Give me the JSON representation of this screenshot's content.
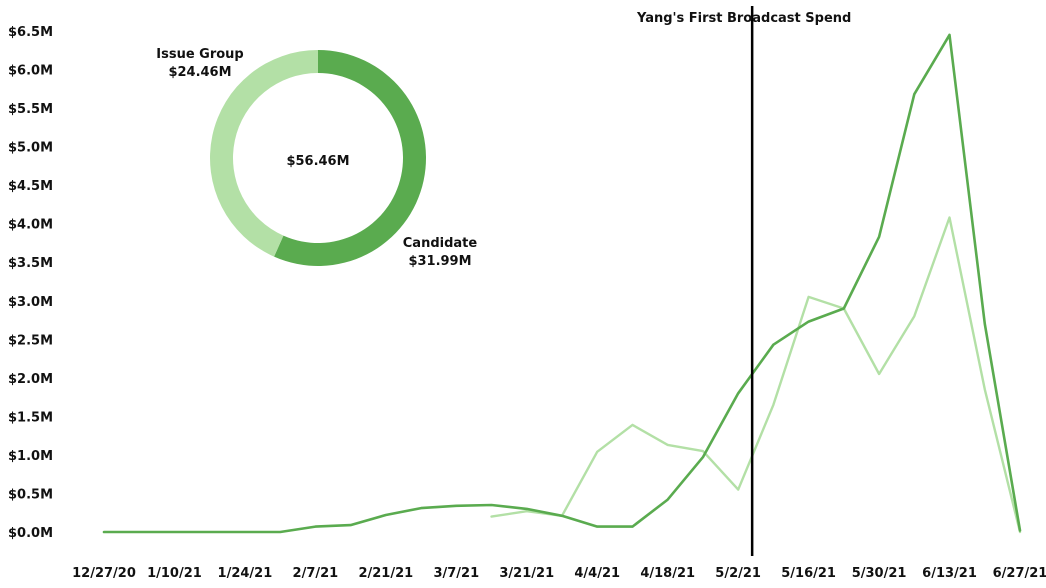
{
  "chart_data": [
    {
      "type": "line",
      "x": [
        "12/27/20",
        "1/3/21",
        "1/10/21",
        "1/17/21",
        "1/24/21",
        "1/31/21",
        "2/7/21",
        "2/14/21",
        "2/21/21",
        "2/28/21",
        "3/7/21",
        "3/14/21",
        "3/21/21",
        "3/28/21",
        "4/4/21",
        "4/11/21",
        "4/18/21",
        "4/25/21",
        "5/2/21",
        "5/9/21",
        "5/16/21",
        "5/23/21",
        "5/30/21",
        "6/6/21",
        "6/13/21",
        "6/20/21",
        "6/27/21"
      ],
      "x_tick_labels": [
        "12/27/20",
        "1/10/21",
        "1/24/21",
        "2/7/21",
        "2/21/21",
        "3/7/21",
        "3/21/21",
        "4/4/21",
        "4/18/21",
        "5/2/21",
        "5/16/21",
        "5/30/21",
        "6/13/21",
        "6/27/21"
      ],
      "y_tick_labels": [
        "$0.0M",
        "$0.5M",
        "$1.0M",
        "$1.5M",
        "$2.0M",
        "$2.5M",
        "$3.0M",
        "$3.5M",
        "$4.0M",
        "$4.5M",
        "$5.0M",
        "$5.5M",
        "$6.0M",
        "$6.5M"
      ],
      "ylim": [
        0,
        6.5
      ],
      "series": [
        {
          "name": "Candidate",
          "color": "#5aab4f",
          "values": [
            0,
            0,
            0,
            0,
            0,
            0,
            0.07,
            0.09,
            0.22,
            0.31,
            0.34,
            0.35,
            0.3,
            0.21,
            0.07,
            0.07,
            0.42,
            0.97,
            1.8,
            2.43,
            2.73,
            2.9,
            3.83,
            5.68,
            6.45,
            2.7,
            0.02
          ]
        },
        {
          "name": "Issue Group",
          "color": "#b3e0a6",
          "values": [
            null,
            null,
            null,
            null,
            null,
            null,
            null,
            null,
            null,
            null,
            null,
            0.2,
            0.27,
            0.21,
            1.04,
            1.39,
            1.13,
            1.05,
            0.55,
            1.65,
            3.05,
            2.9,
            2.05,
            2.8,
            4.08,
            1.85,
            0.0
          ]
        }
      ],
      "annotations": [
        {
          "at_x": "5/2/21",
          "label": "Yang's First Broadcast Spend"
        }
      ],
      "grid": false,
      "legend": "none"
    },
    {
      "type": "pie",
      "center_label": "$56.46M",
      "slices": [
        {
          "label": "Candidate",
          "value": 31.99,
          "value_label": "$31.99M",
          "color": "#5aab4f"
        },
        {
          "label": "Issue Group",
          "value": 24.46,
          "value_label": "$24.46M",
          "color": "#b3e0a6"
        }
      ]
    }
  ]
}
